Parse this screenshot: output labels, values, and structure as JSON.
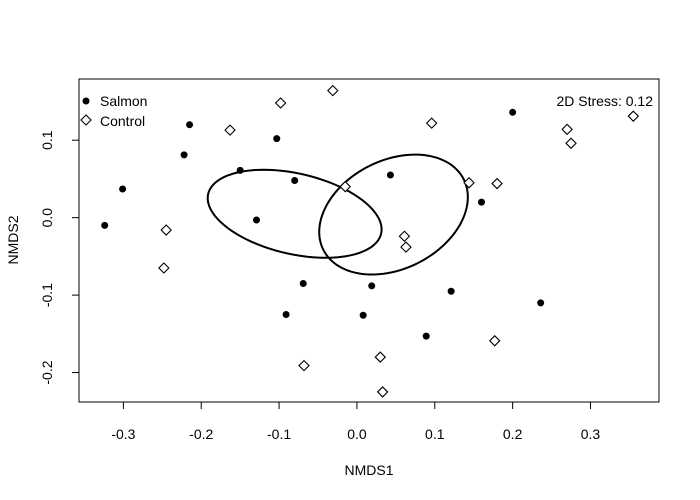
{
  "chart_data": {
    "type": "scatter",
    "xlabel": "NMDS1",
    "ylabel": "NMDS2",
    "xlim": [
      -0.357,
      0.388
    ],
    "ylim": [
      -0.238,
      0.179
    ],
    "xticks": [
      -0.3,
      -0.2,
      -0.1,
      0.0,
      0.1,
      0.2,
      0.3
    ],
    "xtick_labels": [
      "-0.3",
      "-0.2",
      "-0.1",
      "0.0",
      "0.1",
      "0.2",
      "0.3"
    ],
    "yticks": [
      -0.2,
      -0.1,
      0.0,
      0.1
    ],
    "ytick_labels": [
      "-0.2",
      "-0.1",
      "0.0",
      "0.1"
    ],
    "grid": false,
    "legend_position": "top-left",
    "annotation": "2D Stress: 0.12",
    "series": [
      {
        "name": "Salmon",
        "marker": "filled-circle",
        "color": "#000000",
        "points": [
          [
            -0.324,
            -0.01
          ],
          [
            -0.301,
            0.037
          ],
          [
            -0.215,
            0.12
          ],
          [
            -0.222,
            0.081
          ],
          [
            -0.15,
            0.061
          ],
          [
            -0.103,
            0.102
          ],
          [
            -0.08,
            0.048
          ],
          [
            -0.129,
            -0.003
          ],
          [
            -0.069,
            -0.085
          ],
          [
            -0.091,
            -0.125
          ],
          [
            0.043,
            0.055
          ],
          [
            0.019,
            -0.088
          ],
          [
            0.008,
            -0.126
          ],
          [
            0.121,
            -0.095
          ],
          [
            0.089,
            -0.153
          ],
          [
            0.16,
            0.02
          ],
          [
            0.2,
            0.136
          ],
          [
            0.236,
            -0.11
          ]
        ]
      },
      {
        "name": "Control",
        "marker": "open-diamond",
        "color": "#000000",
        "points": [
          [
            -0.098,
            0.148
          ],
          [
            -0.031,
            0.164
          ],
          [
            -0.163,
            0.113
          ],
          [
            0.096,
            0.122
          ],
          [
            0.27,
            0.114
          ],
          [
            0.275,
            0.096
          ],
          [
            0.355,
            0.131
          ],
          [
            -0.245,
            -0.016
          ],
          [
            -0.248,
            -0.065
          ],
          [
            -0.015,
            0.04
          ],
          [
            0.144,
            0.045
          ],
          [
            0.18,
            0.044
          ],
          [
            0.061,
            -0.024
          ],
          [
            0.063,
            -0.038
          ],
          [
            -0.068,
            -0.191
          ],
          [
            0.03,
            -0.18
          ],
          [
            0.177,
            -0.159
          ],
          [
            0.033,
            -0.225
          ]
        ]
      }
    ],
    "ellipses": [
      {
        "name": "Salmon",
        "center": [
          -0.08,
          0.005
        ],
        "semi_major": 0.114,
        "semi_minor": 0.052,
        "angle_deg": -13
      },
      {
        "name": "Control",
        "center": [
          0.047,
          0.004
        ],
        "semi_major": 0.101,
        "semi_minor": 0.07,
        "angle_deg": 27
      }
    ]
  }
}
